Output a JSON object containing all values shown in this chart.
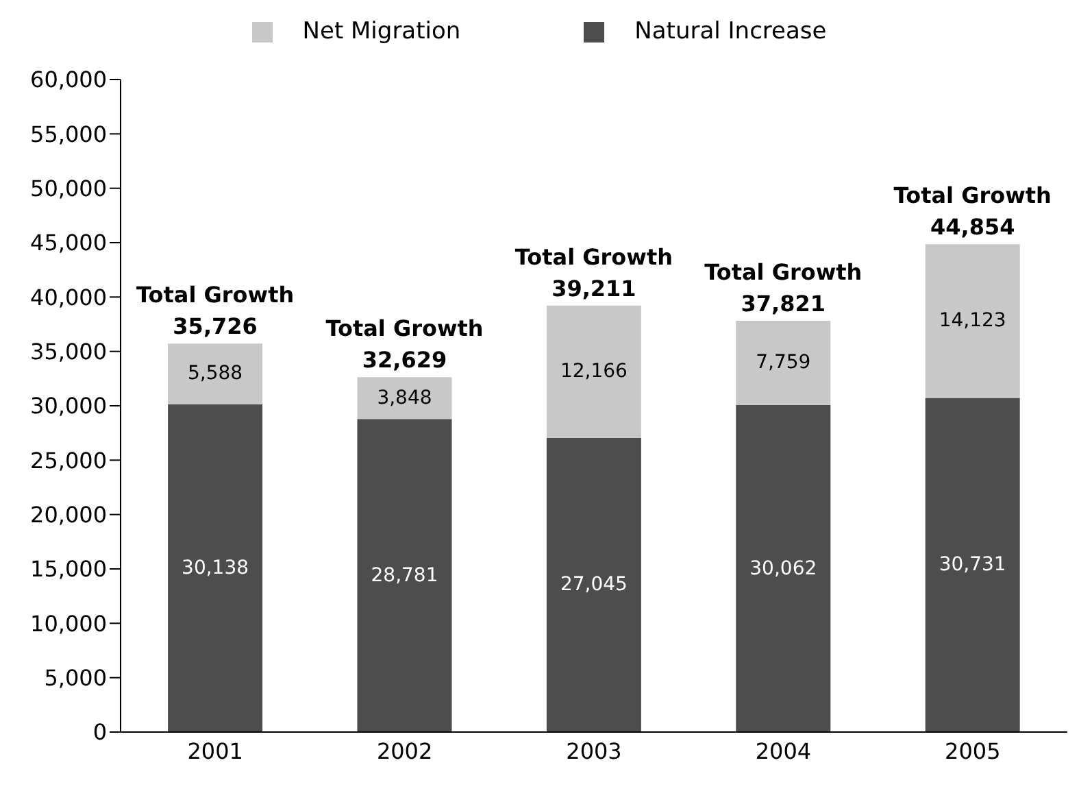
{
  "chart_data": {
    "type": "bar",
    "stacked": true,
    "categories": [
      "2001",
      "2002",
      "2003",
      "2004",
      "2005"
    ],
    "series": [
      {
        "name": "Natural Increase",
        "color": "#4d4d4d",
        "values": [
          30138,
          28781,
          27045,
          30062,
          30731
        ],
        "value_labels": [
          "30,138",
          "28,781",
          "27,045",
          "30,062",
          "30,731"
        ]
      },
      {
        "name": "Net Migration",
        "color": "#c8c8c8",
        "values": [
          5588,
          3848,
          12166,
          7759,
          14123
        ],
        "value_labels": [
          "5,588",
          "3,848",
          "12,166",
          "7,759",
          "14,123"
        ]
      }
    ],
    "totals": [
      "Total Growth 35,726",
      "Total Growth 32,629",
      "Total Growth 39,211",
      "Total Growth 37,821",
      "Total Growth 44,854"
    ],
    "legend": "top",
    "grid": false,
    "ylim": [
      0,
      60000
    ],
    "yticks": [
      {
        "value": 0,
        "label": "0"
      },
      {
        "value": 5000,
        "label": "5,000"
      },
      {
        "value": 10000,
        "label": "10,000"
      },
      {
        "value": 15000,
        "label": "15,000"
      },
      {
        "value": 20000,
        "label": "20,000"
      },
      {
        "value": 25000,
        "label": "25,000"
      },
      {
        "value": 30000,
        "label": "30,000"
      },
      {
        "value": 35000,
        "label": "35,000"
      },
      {
        "value": 40000,
        "label": "40,000"
      },
      {
        "value": 45000,
        "label": "45,000"
      },
      {
        "value": 50000,
        "label": "50,000"
      },
      {
        "value": 55000,
        "label": "55,000"
      },
      {
        "value": 60000,
        "label": "60,000"
      }
    ]
  }
}
